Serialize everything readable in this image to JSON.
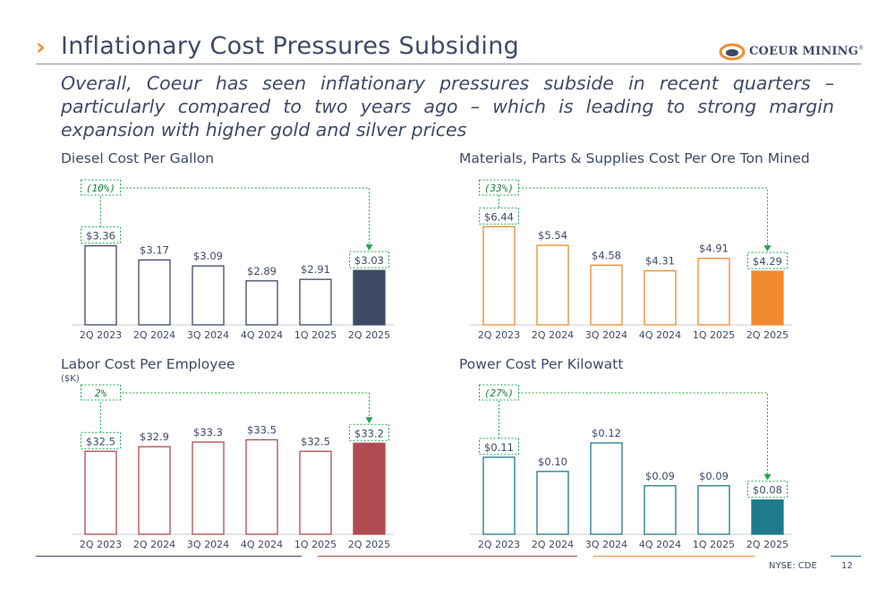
{
  "header": {
    "chevron": "›",
    "title": "Inflationary Cost Pressures Subsiding",
    "logo_text": "COEUR MINING",
    "logo_mark": "®"
  },
  "subtitle": {
    "line1": "Overall, Coeur has seen inflationary pressures subside in recent quarters –",
    "line2": "particularly compared to two years ago – which is leading to strong margin",
    "line3": "expansion with higher gold and silver prices"
  },
  "footer": {
    "ticker": "NYSE: CDE",
    "page": "12"
  },
  "colors": {
    "navy": "#3f4a66",
    "orange": "#f28a30",
    "red": "#b04a52",
    "teal": "#1f7a8c",
    "arrow_green": "#1ea84a"
  },
  "chart_data": [
    {
      "type": "bar",
      "title": "Diesel Cost Per Gallon",
      "unit": "",
      "categories": [
        "2Q 2023",
        "2Q 2024",
        "3Q 2024",
        "4Q 2024",
        "1Q 2025",
        "2Q 2025"
      ],
      "values": [
        3.36,
        3.17,
        3.09,
        2.89,
        2.91,
        3.03
      ],
      "labels": [
        "$3.36",
        "$3.17",
        "$3.09",
        "$2.89",
        "$2.91",
        "$3.03"
      ],
      "change_label": "(10%)",
      "color": "#3f4a66",
      "ylim": [
        2.3,
        3.5
      ]
    },
    {
      "type": "bar",
      "title": "Materials, Parts & Supplies Cost Per Ore Ton Mined",
      "unit": "",
      "categories": [
        "2Q 2023",
        "2Q 2024",
        "3Q 2024",
        "4Q 2024",
        "1Q 2025",
        "2Q 2025"
      ],
      "values": [
        6.44,
        5.54,
        4.58,
        4.31,
        4.91,
        4.29
      ],
      "labels": [
        "$6.44",
        "$5.54",
        "$4.58",
        "$4.31",
        "$4.91",
        "$4.29"
      ],
      "change_label": "(33%)",
      "color": "#f28a30",
      "ylim": [
        1.7,
        6.8
      ]
    },
    {
      "type": "bar",
      "title": "Labor Cost Per Employee",
      "unit": "($K)",
      "categories": [
        "2Q 2023",
        "2Q 2024",
        "3Q 2024",
        "4Q 2024",
        "1Q 2025",
        "2Q 2025"
      ],
      "values": [
        32.5,
        32.9,
        33.3,
        33.5,
        32.5,
        33.2
      ],
      "labels": [
        "$32.5",
        "$32.9",
        "$33.3",
        "$33.5",
        "$32.5",
        "$33.2"
      ],
      "change_label": "2%",
      "color": "#b04a52",
      "ylim": [
        25.3,
        34.0
      ]
    },
    {
      "type": "bar",
      "title": "Power Cost Per Kilowatt",
      "unit": "",
      "categories": [
        "2Q 2023",
        "2Q 2024",
        "3Q 2024",
        "4Q 2024",
        "1Q 2025",
        "2Q 2025"
      ],
      "values": [
        0.11,
        0.1,
        0.12,
        0.09,
        0.09,
        0.08
      ],
      "labels": [
        "$0.11",
        "$0.10",
        "$0.12",
        "$0.09",
        "$0.09",
        "$0.08"
      ],
      "change_label": "(27%)",
      "color": "#1f7a8c",
      "ylim": [
        0.056,
        0.125
      ]
    }
  ]
}
